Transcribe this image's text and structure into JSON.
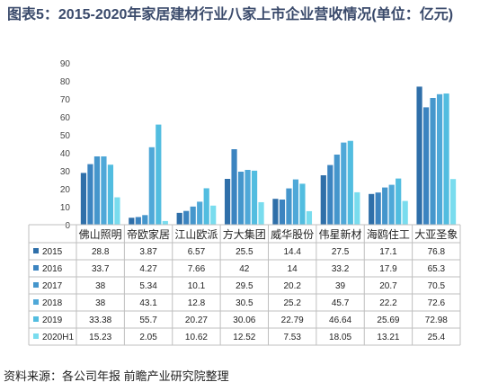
{
  "title": "图表5：2015-2020年家居建材行业八家上市企业营收情况(单位：亿元)",
  "source": "资料来源：各公司年报 前瞻产业研究院整理",
  "colors": {
    "2015": "#2f6fa9",
    "2016": "#3c84c0",
    "2017": "#4596cc",
    "2018": "#4fa8d8",
    "2019": "#52bde0",
    "2020H1": "#79dcee"
  },
  "chart_data": {
    "type": "bar",
    "categories": [
      "佛山照明",
      "帝欧家居",
      "江山欧派",
      "方大集团",
      "威华股份",
      "伟星新材",
      "海鸥住工",
      "大亚圣象"
    ],
    "ylim": [
      0,
      90
    ],
    "yticks": [
      0,
      10,
      20,
      30,
      40,
      50,
      60,
      70,
      80,
      90
    ],
    "grid": false,
    "legend": "table-below",
    "series": [
      {
        "name": "2015",
        "values": [
          28.8,
          3.87,
          6.57,
          25.5,
          14.4,
          27.5,
          17.1,
          76.8
        ],
        "labels": [
          "28.8",
          "3.87",
          "6.57",
          "25.5",
          "14.4",
          "27.5",
          "17.1",
          "76.8"
        ]
      },
      {
        "name": "2016",
        "values": [
          33.7,
          4.27,
          7.66,
          42,
          14,
          33.2,
          17.9,
          65.3
        ],
        "labels": [
          "33.7",
          "4.27",
          "7.66",
          "42",
          "14",
          "33.2",
          "17.9",
          "65.3"
        ]
      },
      {
        "name": "2017",
        "values": [
          38,
          5.34,
          10.1,
          29.5,
          20.2,
          39,
          20.7,
          70.5
        ],
        "labels": [
          "38",
          "5.34",
          "10.1",
          "29.5",
          "20.2",
          "39",
          "20.7",
          "70.5"
        ]
      },
      {
        "name": "2018",
        "values": [
          38,
          43.1,
          12.8,
          30.5,
          25.2,
          45.7,
          22.2,
          72.6
        ],
        "labels": [
          "38",
          "43.1",
          "12.8",
          "30.5",
          "25.2",
          "45.7",
          "22.2",
          "72.6"
        ]
      },
      {
        "name": "2019",
        "values": [
          33.38,
          55.7,
          20.27,
          30.06,
          22.79,
          46.64,
          25.69,
          72.98
        ],
        "labels": [
          "33.38",
          "55.7",
          "20.27",
          "30.06",
          "22.79",
          "46.64",
          "25.69",
          "72.98"
        ]
      },
      {
        "name": "2020H1",
        "values": [
          15.23,
          2.05,
          10.62,
          12.52,
          7.53,
          18.05,
          13.21,
          25.4
        ],
        "labels": [
          "15.23",
          "2.05",
          "10.62",
          "12.52",
          "7.53",
          "18.05",
          "13.21",
          "25.4"
        ]
      }
    ]
  }
}
